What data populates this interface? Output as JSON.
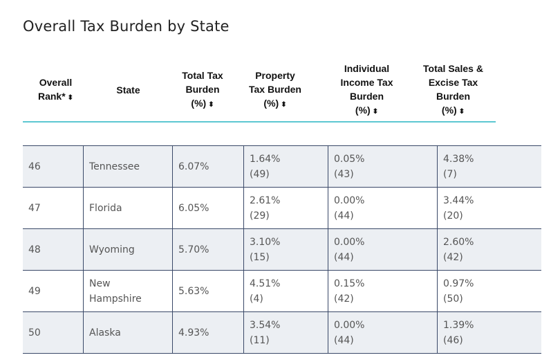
{
  "title": "Overall Tax Burden by State",
  "headers": {
    "rank": [
      "Overall",
      "Rank*"
    ],
    "state": [
      "State"
    ],
    "total": [
      "Total Tax",
      "Burden",
      "(%)"
    ],
    "property": [
      "Property",
      "Tax Burden",
      "(%)"
    ],
    "income": [
      "Individual",
      "Income Tax",
      "Burden",
      "(%)"
    ],
    "sales": [
      "Total Sales &",
      "Excise Tax",
      "Burden",
      "(%)"
    ],
    "sort_icon": "⬍"
  },
  "rows": [
    {
      "rank": "46",
      "state": [
        "Tennessee"
      ],
      "total": "6.07%",
      "property": [
        "1.64%",
        "(49)"
      ],
      "income": [
        "0.05%",
        "(43)"
      ],
      "sales": [
        "4.38%",
        "(7)"
      ]
    },
    {
      "rank": "47",
      "state": [
        "Florida"
      ],
      "total": "6.05%",
      "property": [
        "2.61%",
        "(29)"
      ],
      "income": [
        "0.00%",
        "(44)"
      ],
      "sales": [
        "3.44%",
        "(20)"
      ]
    },
    {
      "rank": "48",
      "state": [
        "Wyoming"
      ],
      "total": "5.70%",
      "property": [
        "3.10%",
        "(15)"
      ],
      "income": [
        "0.00%",
        "(44)"
      ],
      "sales": [
        "2.60%",
        "(42)"
      ]
    },
    {
      "rank": "49",
      "state": [
        "New",
        "Hampshire"
      ],
      "total": "5.63%",
      "property": [
        "4.51%",
        "(4)"
      ],
      "income": [
        "0.15%",
        "(42)"
      ],
      "sales": [
        "0.97%",
        "(50)"
      ]
    },
    {
      "rank": "50",
      "state": [
        "Alaska"
      ],
      "total": "4.93%",
      "property": [
        "3.54%",
        "(11)"
      ],
      "income": [
        "0.00%",
        "(44)"
      ],
      "sales": [
        "1.39%",
        "(46)"
      ]
    }
  ],
  "colors": {
    "accent_line": "#5cc7d1",
    "grid_line": "#394867",
    "shaded_row": "#eceff3"
  }
}
